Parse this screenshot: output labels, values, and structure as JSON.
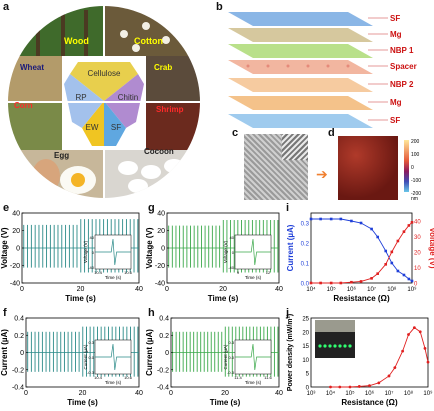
{
  "panels": {
    "a": "a",
    "b": "b",
    "c": "c",
    "d": "d",
    "e": "e",
    "f": "f",
    "g": "g",
    "h": "h",
    "i": "i",
    "j": "j"
  },
  "panel_a": {
    "photos": [
      "Wood",
      "Cotton",
      "Crab",
      "Shrimp",
      "Cocoon",
      "Egg",
      "Corn",
      "Wheat"
    ],
    "center": [
      "Cellulose",
      "Chitin",
      "SF",
      "EW",
      "RP"
    ]
  },
  "panel_b": {
    "layers": [
      "SF",
      "Mg",
      "NBP 1",
      "Spacer",
      "NBP 2",
      "Mg",
      "SF"
    ]
  },
  "panel_d": {
    "colorbar": {
      "ticks": [
        "200",
        "100",
        "0",
        "-100",
        "-200"
      ],
      "unit": "nm"
    }
  },
  "colors": {
    "teal": "#2a8a88",
    "green": "#3aa84a",
    "blue": "#1f3fd8",
    "red": "#e02020"
  },
  "chart_data": [
    {
      "panel": "e",
      "type": "line",
      "xlabel": "Time (s)",
      "ylabel": "Voltage (V)",
      "xlim": [
        0,
        40
      ],
      "ylim": [
        -40,
        40
      ],
      "yticks": [
        -40,
        -20,
        0,
        20,
        40
      ],
      "xticks": [
        0,
        20,
        40
      ],
      "amplitude_pos": 33,
      "amplitude_neg": -28,
      "inset": {
        "xlabel": "Time (s)",
        "ylabel": "Voltage (V)",
        "xticks": [
          "10.4",
          "10.6"
        ],
        "yticks": [
          "40",
          "0",
          "-40"
        ]
      }
    },
    {
      "panel": "g",
      "type": "line",
      "xlabel": "Time (s)",
      "ylabel": "Voltage (V)",
      "xlim": [
        0,
        40
      ],
      "ylim": [
        -40,
        40
      ],
      "yticks": [
        -40,
        -20,
        0,
        20,
        40
      ],
      "xticks": [
        0,
        20,
        40
      ],
      "amplitude_pos": 32,
      "amplitude_neg": -28,
      "inset": {
        "xlabel": "Time (s)",
        "ylabel": "Voltage (V)",
        "xticks": [
          "9",
          "12"
        ],
        "yticks": [
          "40",
          "0",
          "-40"
        ]
      }
    },
    {
      "panel": "f",
      "type": "line",
      "xlabel": "Time (s)",
      "ylabel": "Current (µA)",
      "xlim": [
        0,
        40
      ],
      "ylim": [
        -0.4,
        0.4
      ],
      "yticks": [
        -0.4,
        -0.2,
        0.0,
        0.2,
        0.4
      ],
      "xticks": [
        0,
        20,
        40
      ],
      "amplitude_pos": 0.3,
      "amplitude_neg": -0.28,
      "inset": {
        "xlabel": "Time (s)",
        "ylabel": "Current (µA)",
        "xticks": [
          "10.4",
          "10.6"
        ],
        "yticks": [
          "0.3",
          "0.0",
          "-0.3"
        ]
      }
    },
    {
      "panel": "h",
      "type": "line",
      "xlabel": "Time (s)",
      "ylabel": "Current (µA)",
      "xlim": [
        0,
        40
      ],
      "ylim": [
        -0.4,
        0.4
      ],
      "yticks": [
        -0.4,
        -0.2,
        0.0,
        0.2,
        0.4
      ],
      "xticks": [
        0,
        20,
        40
      ],
      "amplitude_pos": 0.3,
      "amplitude_neg": -0.28,
      "inset": {
        "xlabel": "Time (s)",
        "ylabel": "Current (µA)",
        "xticks": [
          "11.4",
          "11.6"
        ],
        "yticks": [
          "0.3",
          "0.0",
          "-0.3"
        ]
      }
    },
    {
      "panel": "i",
      "type": "line",
      "xlabel": "Resistance (Ω)",
      "ylabel_left": "Current (µA)",
      "ylabel_right": "Voltage (V)",
      "xscale": "log",
      "xticks": [
        "10⁴",
        "10⁵",
        "10⁶",
        "10⁷",
        "10⁸",
        "10⁹"
      ],
      "yticks_left": [
        "0.0",
        "0.1",
        "0.2",
        "0.3"
      ],
      "yticks_right": [
        "0",
        "10",
        "20",
        "30",
        "40"
      ],
      "series": [
        {
          "axis": "left",
          "color": "blue",
          "x": [
            10000.0,
            30000.0,
            100000.0,
            300000.0,
            1000000.0,
            3000000.0,
            10000000.0,
            20000000.0,
            50000000.0,
            100000000.0,
            200000000.0,
            400000000.0,
            700000000.0,
            1000000000.0
          ],
          "y": [
            0.32,
            0.32,
            0.32,
            0.32,
            0.31,
            0.3,
            0.27,
            0.23,
            0.16,
            0.1,
            0.06,
            0.04,
            0.02,
            0.01
          ]
        },
        {
          "axis": "right",
          "color": "red",
          "x": [
            10000.0,
            30000.0,
            100000.0,
            300000.0,
            1000000.0,
            3000000.0,
            10000000.0,
            20000000.0,
            50000000.0,
            100000000.0,
            200000000.0,
            400000000.0,
            700000000.0,
            1000000000.0
          ],
          "y": [
            0,
            0,
            0,
            0,
            0.5,
            1,
            3,
            6,
            12,
            20,
            27,
            33,
            37,
            39
          ]
        }
      ]
    },
    {
      "panel": "j",
      "type": "line",
      "xlabel": "Resistance (Ω)",
      "ylabel": "Power density (mW/m²)",
      "xscale": "log",
      "xticks": [
        "10³",
        "10⁴",
        "10⁵",
        "10⁶",
        "10⁷",
        "10⁸",
        "10⁹"
      ],
      "yticks": [
        "0",
        "5",
        "10",
        "15",
        "20",
        "25"
      ],
      "series": [
        {
          "color": "red",
          "x": [
            10000.0,
            30000.0,
            100000.0,
            300000.0,
            1000000.0,
            3000000.0,
            10000000.0,
            20000000.0,
            50000000.0,
            100000000.0,
            200000000.0,
            400000000.0,
            700000000.0,
            1000000000.0
          ],
          "y": [
            0,
            0,
            0,
            0.2,
            0.5,
            1.5,
            4,
            7,
            13,
            19,
            21.5,
            20,
            14,
            9
          ]
        }
      ]
    }
  ]
}
